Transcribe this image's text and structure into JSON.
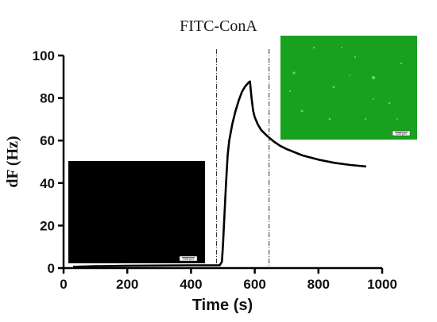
{
  "chart_data": {
    "type": "line",
    "title": "FITC-ConA",
    "xlabel": "Time (s)",
    "ylabel": "dF (Hz)",
    "xlim": [
      0,
      1000
    ],
    "ylim": [
      0,
      100
    ],
    "x_ticks": [
      "0",
      "200",
      "400",
      "600",
      "800",
      "1000"
    ],
    "y_ticks": [
      "0",
      "20",
      "40",
      "60",
      "80",
      "100"
    ],
    "grid": false,
    "series": [
      {
        "color": "#000000",
        "points": [
          [
            30,
            0.6
          ],
          [
            100,
            0.9
          ],
          [
            200,
            1.1
          ],
          [
            300,
            1.2
          ],
          [
            400,
            1.3
          ],
          [
            490,
            1.3
          ],
          [
            497,
            3
          ],
          [
            500,
            10
          ],
          [
            505,
            25
          ],
          [
            510,
            40
          ],
          [
            515,
            53
          ],
          [
            520,
            60
          ],
          [
            530,
            68
          ],
          [
            540,
            74
          ],
          [
            550,
            79
          ],
          [
            560,
            83
          ],
          [
            570,
            85.5
          ],
          [
            580,
            87.2
          ],
          [
            585,
            87.8
          ],
          [
            590,
            80
          ],
          [
            595,
            74
          ],
          [
            600,
            71
          ],
          [
            610,
            67.5
          ],
          [
            620,
            65
          ],
          [
            640,
            62
          ],
          [
            660,
            59.5
          ],
          [
            680,
            57.5
          ],
          [
            700,
            56
          ],
          [
            750,
            53
          ],
          [
            800,
            51
          ],
          [
            850,
            49.5
          ],
          [
            900,
            48.5
          ],
          [
            950,
            47.8
          ]
        ]
      }
    ],
    "reference_lines": [
      {
        "x": 480,
        "style": "dash-dot"
      },
      {
        "x": 645,
        "style": "dash-dot"
      }
    ],
    "insets": [
      {
        "position": "bottom-left",
        "color": "#000000",
        "scale_label": "100 µm"
      },
      {
        "position": "top-right",
        "color": "#18a11e",
        "scale_label": "100 µm"
      }
    ]
  }
}
